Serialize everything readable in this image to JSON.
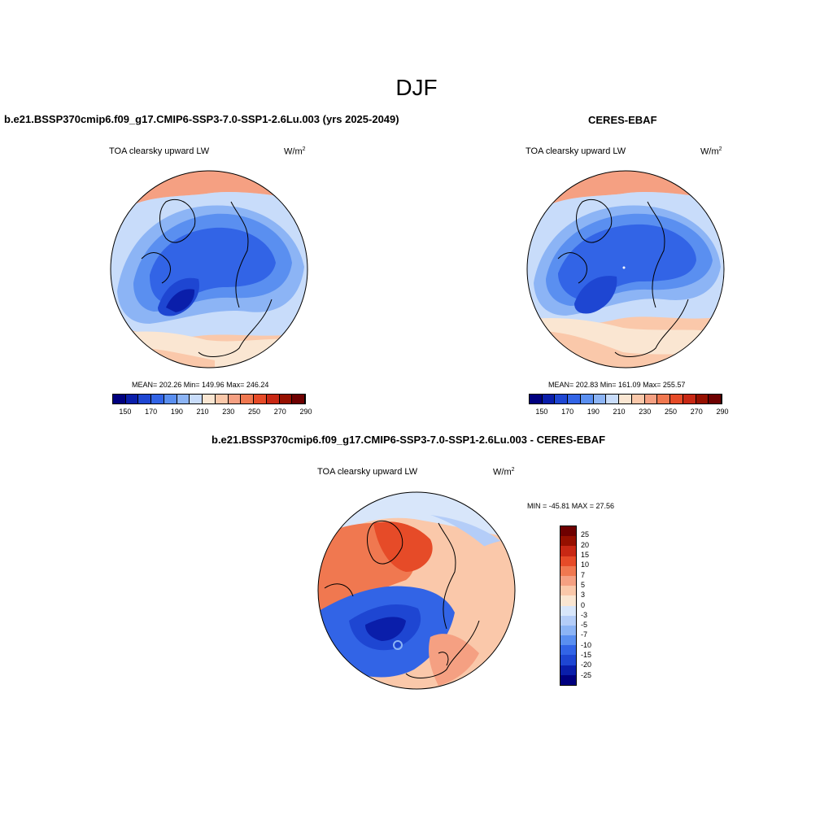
{
  "figure": {
    "season_title": "DJF"
  },
  "panels": [
    {
      "id": "model",
      "title": "b.e21.BSSP370cmip6.f09_g17.CMIP6-SSP3-7.0-SSP1-2.6Lu.003 (yrs 2025-2049)",
      "variable": "TOA clearsky upward LW",
      "units": "W/m",
      "units_exp": "2",
      "stats": "MEAN= 202.26  Min= 149.96  Max= 246.24",
      "colorbar": {
        "colors": [
          "#00007f",
          "#0a1eaa",
          "#1e46d2",
          "#3264e6",
          "#5a8ff0",
          "#8cb4f5",
          "#c8dcfa",
          "#fae6d2",
          "#fac8aa",
          "#f5a082",
          "#f07850",
          "#e64b28",
          "#c82814",
          "#961000",
          "#6e0000"
        ],
        "tick_labels": [
          "150",
          "170",
          "190",
          "210",
          "230",
          "250",
          "270",
          "290"
        ]
      }
    },
    {
      "id": "obs",
      "title": "CERES-EBAF",
      "variable": "TOA clearsky upward LW",
      "units": "W/m",
      "units_exp": "2",
      "stats": "MEAN= 202.83  Min= 161.09  Max= 255.57",
      "colorbar": {
        "colors": [
          "#00007f",
          "#0a1eaa",
          "#1e46d2",
          "#3264e6",
          "#5a8ff0",
          "#8cb4f5",
          "#c8dcfa",
          "#fae6d2",
          "#fac8aa",
          "#f5a082",
          "#f07850",
          "#e64b28",
          "#c82814",
          "#961000",
          "#6e0000"
        ],
        "tick_labels": [
          "150",
          "170",
          "190",
          "210",
          "230",
          "250",
          "270",
          "290"
        ]
      }
    },
    {
      "id": "diff",
      "title": "b.e21.BSSP370cmip6.f09_g17.CMIP6-SSP3-7.0-SSP1-2.6Lu.003 - CERES-EBAF",
      "variable": "TOA clearsky upward LW",
      "units": "W/m",
      "units_exp": "2",
      "stats": "MIN = -45.81 MAX =  27.56",
      "colorbar": {
        "colors": [
          "#00007f",
          "#0a1eaa",
          "#1e46d2",
          "#3264e6",
          "#5a8ff0",
          "#8cb4f5",
          "#b4cdf8",
          "#d8e6fa",
          "#fae6d2",
          "#fac8aa",
          "#f5a082",
          "#f07850",
          "#e64b28",
          "#c82814",
          "#961000",
          "#6e0000"
        ],
        "tick_labels": [
          "-25",
          "-20",
          "-15",
          "-10",
          "-7",
          "-5",
          "-3",
          "0",
          "3",
          "5",
          "7",
          "10",
          "15",
          "20",
          "25"
        ]
      }
    }
  ]
}
